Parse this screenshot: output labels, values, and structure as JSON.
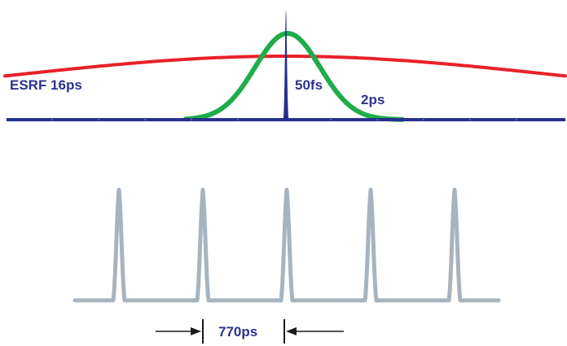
{
  "colors": {
    "esrf": "#e8212a",
    "ps2": "#1fad4a",
    "fs50": "#24308f",
    "baseline": "#24308f",
    "train": "#a7b4bf",
    "arrow": "#1a1a1a",
    "label": "#2b3490"
  },
  "labels": {
    "esrf": "ESRF 16ps",
    "fs50": "50fs",
    "ps2": "2ps",
    "spacing": "770ps"
  },
  "pulse_train": {
    "pulse_count": 5
  }
}
